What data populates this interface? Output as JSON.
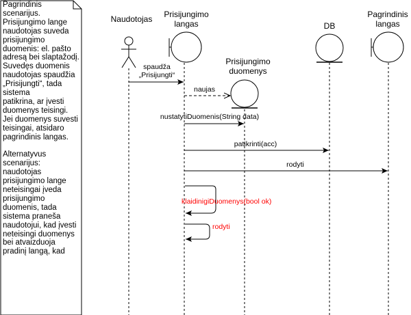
{
  "note": {
    "text": "Pagrindinis scenarijus.\nPrisijungimo lange naudotojas suveda prisijungimo duomenis: el. pašto adresą bei slaptažodį. Suvedęs duomenis naudotojas spaudžia „Prisijungti“, tada sistema\npatikrina, ar įvesti duomenys teisingi. Jei duomenys suvesti teisingai, atsidaro pagrindinis langas.\n\nAlternatyvus scenarijus: naudotojas prisijungimo lange neteisingai įveda prisijungimo duomenis, tada sistema praneša naudotojui, kad įvesti neteisingi duomenys bei atvaizduoja pradinį langą, kad"
  },
  "participants": [
    {
      "id": "user",
      "type": "actor",
      "label": "Naudotojas"
    },
    {
      "id": "login",
      "type": "boundary",
      "label_line1": "Prisijungimo",
      "label_line2": "langas"
    },
    {
      "id": "data",
      "type": "entity",
      "label_line1": "Prisijungimo",
      "label_line2": "duomenys"
    },
    {
      "id": "db",
      "type": "entity",
      "label": "DB"
    },
    {
      "id": "main",
      "type": "boundary",
      "label_line1": "Pagrindinis",
      "label_line2": "langas"
    }
  ],
  "messages": [
    {
      "from": "user",
      "to": "login",
      "label_line1": "spaudža",
      "label_line2": "„Prisijungti“",
      "style": "solid"
    },
    {
      "from": "login",
      "to": "data",
      "label": "naujas",
      "style": "dashed"
    },
    {
      "from": "login",
      "to": "data",
      "label": "nustatytiDuomenis(String data)",
      "style": "solid"
    },
    {
      "from": "login",
      "to": "db",
      "label": "patikrinti(acc)",
      "style": "solid"
    },
    {
      "from": "login",
      "to": "main",
      "label": "rodyti",
      "style": "solid"
    },
    {
      "from": "login",
      "to": "login",
      "label": "klaidinigiDuomenys(bool ok)",
      "style": "self",
      "color": "#ff0000"
    },
    {
      "from": "login",
      "to": "login",
      "label": "rodyti",
      "style": "self",
      "color": "#ff0000"
    }
  ],
  "colors": {
    "line": "#000000",
    "alt": "#ff0000",
    "background": "#ffffff"
  }
}
